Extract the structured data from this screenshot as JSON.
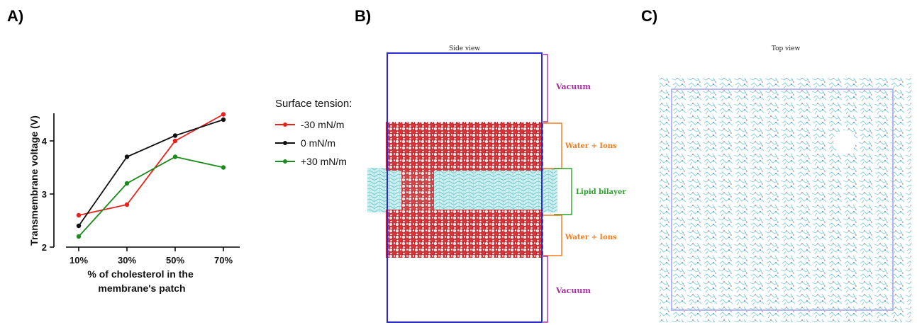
{
  "panels": {
    "a": "A)",
    "b": "B)",
    "c": "C)"
  },
  "chart_data": {
    "type": "line",
    "categories": [
      "10%",
      "30%",
      "50%",
      "70%"
    ],
    "xlabel": "% of cholesterol in the membrane's patch",
    "xlabel_lines": [
      "% of cholesterol in the",
      "membrane's patch"
    ],
    "ylabel": "Transmembrane voltage (V)",
    "ylim": [
      2,
      4.6
    ],
    "yticks": [
      2,
      3,
      4
    ],
    "grid": false,
    "legend_title": "Surface tension:",
    "legend_position": "right",
    "series": [
      {
        "name": "-30 mN/m",
        "color": "#e8211c",
        "values": [
          2.6,
          2.8,
          4.0,
          4.5
        ]
      },
      {
        "name": "0 mN/m",
        "color": "#111111",
        "values": [
          2.4,
          3.7,
          4.1,
          4.4
        ]
      },
      {
        "name": "+30 mN/m",
        "color": "#1c8a1c",
        "values": [
          2.2,
          3.2,
          3.7,
          3.5
        ]
      }
    ]
  },
  "side_view": {
    "title": "Side view",
    "labels": {
      "vacuum_top": "Vacuum",
      "water_top": "Water + Ions",
      "lipid": "Lipid bilayer",
      "water_bottom": "Water + Ions",
      "vacuum_bottom": "Vacuum"
    },
    "colors": {
      "box": "#2a2ad8",
      "water": "#c8232a",
      "lipid": "#7fd8da",
      "vacuum": "#a3329e",
      "water_label": "#f07b1c",
      "lipid_label": "#2aa12a"
    }
  },
  "top_view": {
    "title": "Top view",
    "colors": {
      "box": "#a9a7ef",
      "lipid": "#7fd0d8"
    }
  }
}
